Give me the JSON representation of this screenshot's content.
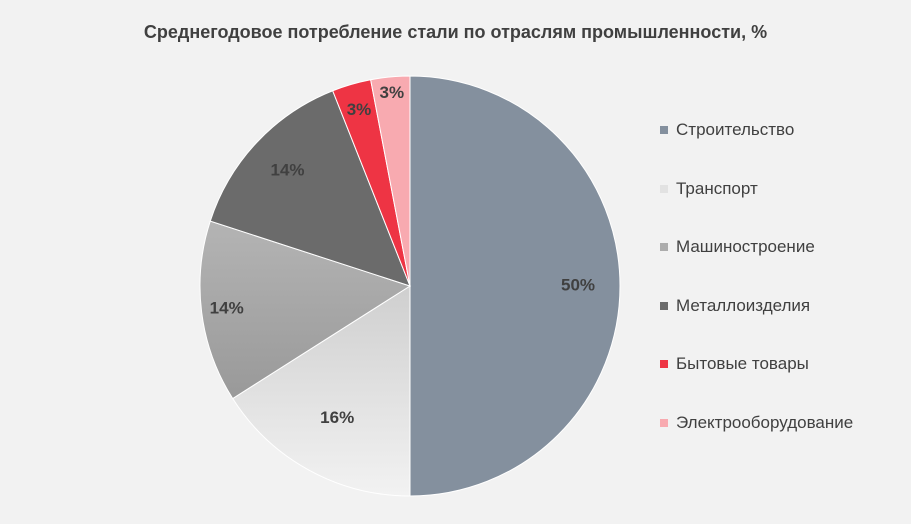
{
  "chart_data": {
    "type": "pie",
    "title": "Среднегодовое потребление стали по отраслям промышленности, %",
    "categories": [
      "Строительство",
      "Транспорт",
      "Машиностроение",
      "Металлоизделия",
      "Бытовые товары",
      "Электрооборудование"
    ],
    "values": [
      50,
      16,
      14,
      14,
      3,
      3
    ],
    "labels": [
      "50%",
      "16%",
      "14%",
      "14%",
      "3%",
      "3%"
    ],
    "colors": [
      "#84909e",
      "#e2e2e2",
      "#acacac",
      "#6b6b6b",
      "#ee3444",
      "#f8aab0"
    ],
    "legend_position": "right"
  }
}
